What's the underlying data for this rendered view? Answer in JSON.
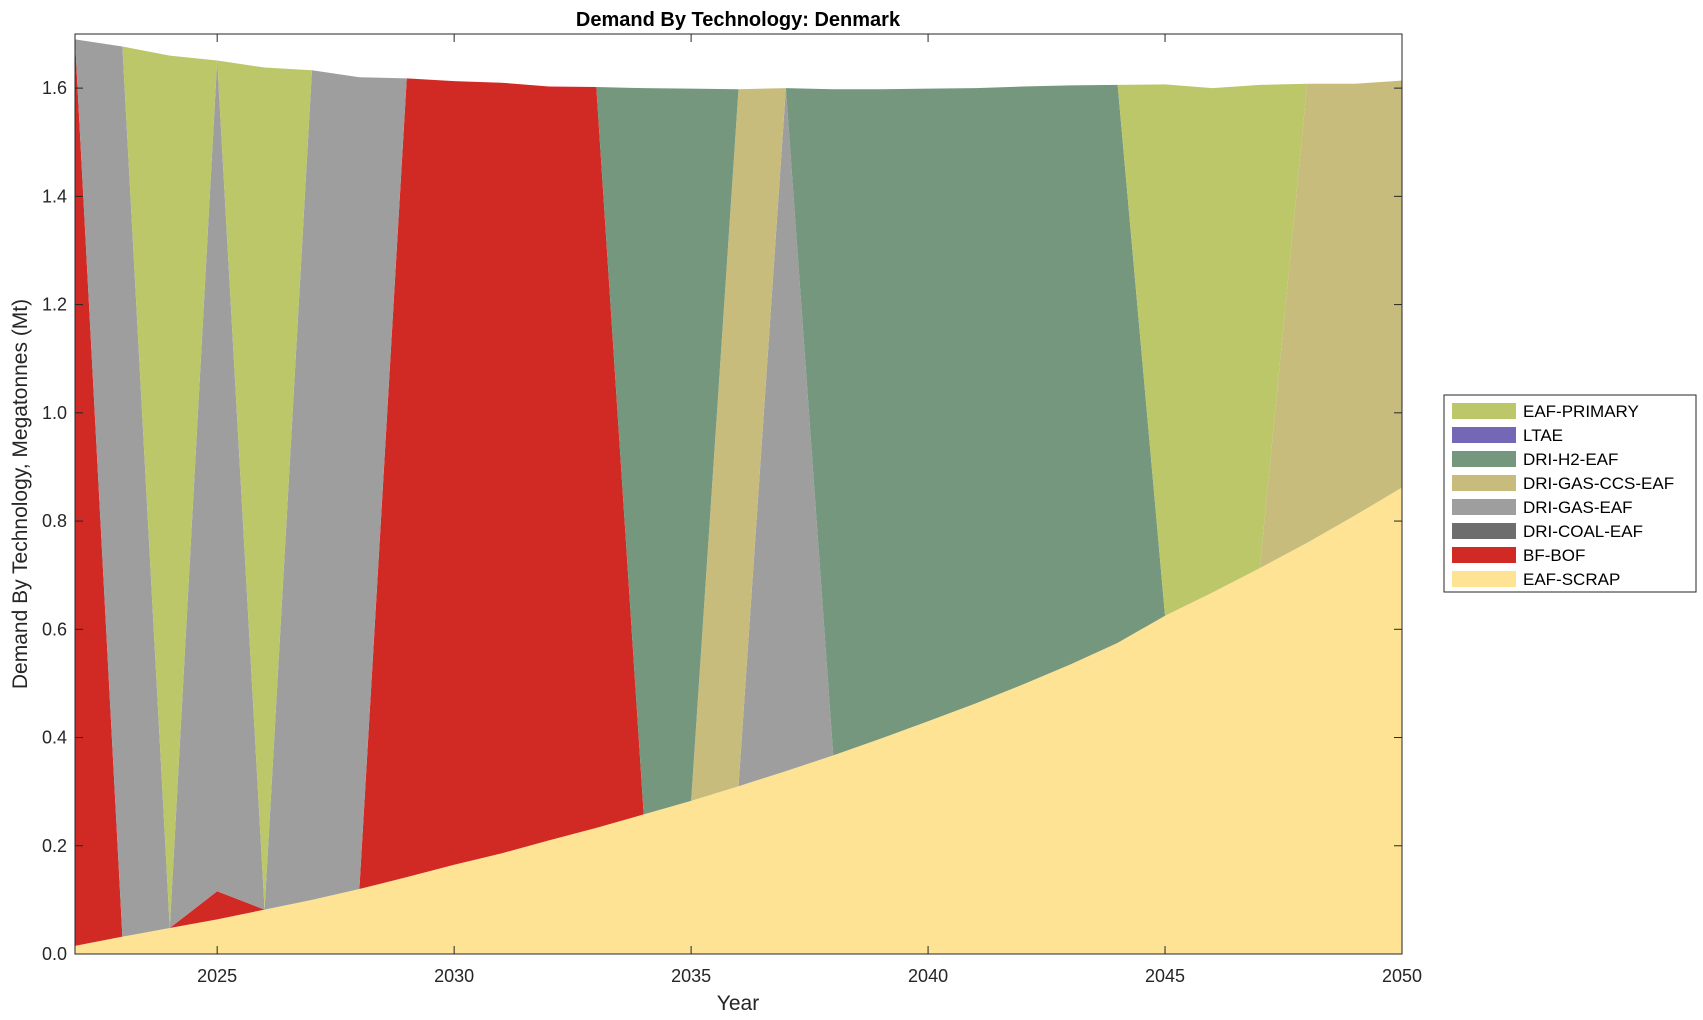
{
  "chart_data": {
    "type": "area",
    "title": "Demand By Technology: Denmark",
    "xlabel": "Year",
    "ylabel": "Demand By Technology, Megatonnes (Mt)",
    "xlim": [
      2022,
      2050
    ],
    "ylim": [
      0,
      1.7
    ],
    "xticks": [
      2025,
      2030,
      2035,
      2040,
      2045,
      2050
    ],
    "yticks": [
      0.0,
      0.2,
      0.4,
      0.6,
      0.8,
      1.0,
      1.2,
      1.4,
      1.6
    ],
    "ytick_labels": [
      "0.0",
      "0.2",
      "0.4",
      "0.6",
      "0.8",
      "1.0",
      "1.2",
      "1.4",
      "1.6"
    ],
    "grid": false,
    "legend_position": "right",
    "x": [
      2022,
      2023,
      2024,
      2025,
      2026,
      2027,
      2028,
      2029,
      2030,
      2031,
      2032,
      2033,
      2034,
      2035,
      2036,
      2037,
      2038,
      2039,
      2040,
      2041,
      2042,
      2043,
      2044,
      2045,
      2046,
      2047,
      2048,
      2049,
      2050
    ],
    "series": [
      {
        "name": "EAF-SCRAP",
        "color": "#FDE393",
        "values": [
          0.015,
          0.032,
          0.048,
          0.064,
          0.082,
          0.1,
          0.12,
          0.142,
          0.165,
          0.186,
          0.21,
          0.233,
          0.258,
          0.283,
          0.31,
          0.338,
          0.367,
          0.398,
          0.43,
          0.463,
          0.498,
          0.535,
          0.575,
          0.625,
          0.668,
          0.713,
          0.76,
          0.81,
          0.862
        ]
      },
      {
        "name": "BF-BOF",
        "color": "#D12A25",
        "values": [
          1.675,
          0,
          0,
          0.052,
          0,
          0,
          0,
          1.476,
          1.448,
          1.424,
          1.393,
          1.369,
          0,
          0,
          0,
          0,
          0,
          0,
          0,
          0,
          0,
          0,
          0,
          0,
          0,
          0,
          0,
          0,
          0
        ]
      },
      {
        "name": "DRI-COAL-EAF",
        "color": "#6D6D6D",
        "values": [
          0,
          0,
          0,
          0,
          0,
          0,
          0,
          0,
          0,
          0,
          0,
          0,
          0,
          0,
          0,
          0,
          0,
          0,
          0,
          0,
          0,
          0,
          0,
          0,
          0,
          0,
          0,
          0,
          0
        ]
      },
      {
        "name": "DRI-GAS-EAF",
        "color": "#9E9E9E",
        "values": [
          0,
          1.645,
          0,
          1.535,
          0,
          1.533,
          1.5,
          0,
          0,
          0,
          0,
          0,
          0,
          0,
          0,
          1.262,
          0,
          0,
          0,
          0,
          0,
          0,
          0,
          0,
          0,
          0,
          0,
          0,
          0
        ]
      },
      {
        "name": "DRI-GAS-CCS-EAF",
        "color": "#C8BC7D",
        "values": [
          0,
          0,
          0,
          0,
          0,
          0,
          0,
          0,
          0,
          0,
          0,
          0,
          0,
          0,
          1.288,
          0,
          0,
          0,
          0,
          0,
          0,
          0,
          0,
          0,
          0,
          0,
          0.848,
          0.798,
          0.752
        ]
      },
      {
        "name": "DRI-H2-EAF",
        "color": "#75977D",
        "values": [
          0,
          0,
          0,
          0,
          0,
          0,
          0,
          0,
          0,
          0,
          0,
          0,
          1.342,
          1.316,
          0,
          0,
          1.231,
          1.2,
          1.169,
          1.137,
          1.105,
          1.07,
          1.031,
          0,
          0,
          0,
          0,
          0,
          0
        ]
      },
      {
        "name": "LTAE",
        "color": "#7468B6",
        "values": [
          0,
          0,
          0,
          0,
          0,
          0,
          0,
          0,
          0,
          0,
          0,
          0,
          0,
          0,
          0,
          0,
          0,
          0,
          0,
          0,
          0,
          0,
          0,
          0,
          0,
          0,
          0,
          0,
          0
        ]
      },
      {
        "name": "EAF-PRIMARY",
        "color": "#BCC76A",
        "values": [
          0,
          0,
          1.612,
          0,
          1.556,
          0,
          0,
          0,
          0,
          0,
          0,
          0,
          0,
          0,
          0,
          0,
          0,
          0,
          0,
          0,
          0,
          0,
          0,
          0.982,
          0.932,
          0.893,
          0,
          0,
          0
        ]
      }
    ],
    "legend_order": [
      "EAF-PRIMARY",
      "LTAE",
      "DRI-H2-EAF",
      "DRI-GAS-CCS-EAF",
      "DRI-GAS-EAF",
      "DRI-COAL-EAF",
      "BF-BOF",
      "EAF-SCRAP"
    ]
  }
}
